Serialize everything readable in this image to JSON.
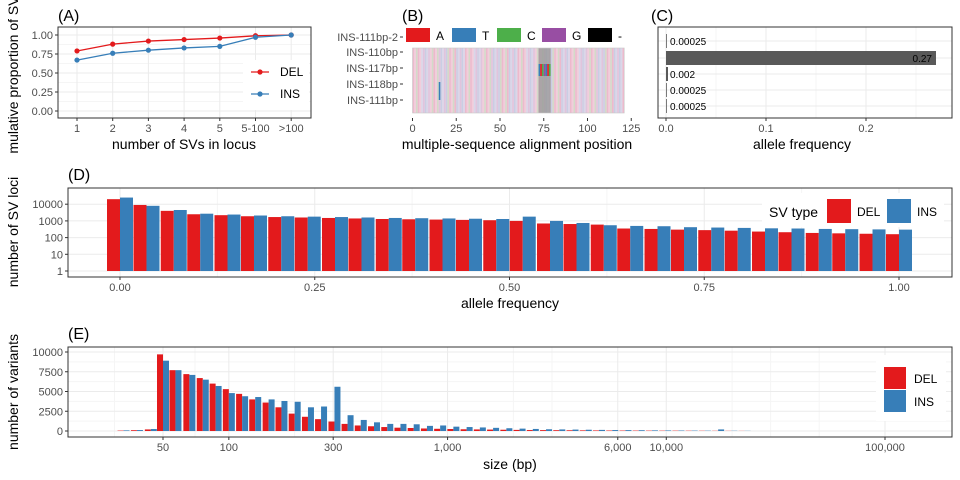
{
  "colors": {
    "DEL": "#e31a1c",
    "INS": "#377eb8",
    "A": "#e31a1c",
    "T": "#377eb8",
    "C": "#4daf4a",
    "G": "#984ea3",
    "gap": "#000000",
    "bar_c": "#595959"
  },
  "chart_data": [
    {
      "panel": "(A)",
      "type": "line",
      "xlabel": "number of SVs in locus",
      "ylabel": "mulative proportion of SV",
      "categories": [
        "1",
        "2",
        "3",
        "4",
        "5",
        "5-100",
        ">100"
      ],
      "ylim": [
        0,
        1
      ],
      "yticks": [
        "0.00",
        "0.25",
        "0.50",
        "0.75",
        "1.00"
      ],
      "series": [
        {
          "name": "DEL",
          "values": [
            0.79,
            0.88,
            0.92,
            0.94,
            0.96,
            0.99,
            1.0
          ]
        },
        {
          "name": "INS",
          "values": [
            0.67,
            0.76,
            0.8,
            0.83,
            0.85,
            0.97,
            1.0
          ]
        }
      ],
      "legend": "bottom-right",
      "grid": true
    },
    {
      "panel": "(B)",
      "type": "heatmap",
      "xlabel": "multiple-sequence alignment position",
      "rows": [
        "INS-111bp-2",
        "INS-110bp",
        "INS-117bp",
        "INS-118bp",
        "INS-111bp"
      ],
      "xlim": [
        0,
        125
      ],
      "xticks": [
        0,
        25,
        50,
        75,
        100,
        125
      ],
      "legend_labels": [
        "A",
        "T",
        "C",
        "G",
        "-"
      ],
      "legend": "top"
    },
    {
      "panel": "(C)",
      "type": "bar",
      "orientation": "horizontal",
      "xlabel": "allele frequency",
      "categories": [
        "INS-111bp-2",
        "INS-110bp",
        "INS-117bp",
        "INS-118bp",
        "INS-111bp"
      ],
      "values": [
        0.00025,
        0.27,
        0.002,
        0.00025,
        0.00025
      ],
      "labels": [
        "0.00025",
        "0.27",
        "0.002",
        "0.00025",
        "0.00025"
      ],
      "xlim": [
        0,
        0.28
      ],
      "xticks": [
        "0.0",
        "0.1",
        "0.2"
      ]
    },
    {
      "panel": "(D)",
      "type": "bar",
      "xlabel": "allele frequency",
      "ylabel": "number of SV loci",
      "yscale": "log",
      "ylim": [
        1,
        30000
      ],
      "yticks": [
        "1",
        "10",
        "100",
        "1000",
        "10000"
      ],
      "xlim": [
        -0.03,
        1.03
      ],
      "xticks": [
        "0.00",
        "0.25",
        "0.50",
        "0.75",
        "1.00"
      ],
      "x": [
        0.0,
        0.034,
        0.069,
        0.103,
        0.138,
        0.172,
        0.207,
        0.241,
        0.276,
        0.31,
        0.345,
        0.379,
        0.414,
        0.448,
        0.483,
        0.517,
        0.552,
        0.586,
        0.621,
        0.655,
        0.69,
        0.724,
        0.759,
        0.793,
        0.828,
        0.862,
        0.897,
        0.931,
        0.966,
        1.0
      ],
      "series": [
        {
          "name": "DEL",
          "values": [
            20000,
            9000,
            4000,
            2500,
            2200,
            1900,
            1700,
            1600,
            1500,
            1400,
            1300,
            1250,
            1200,
            1150,
            1100,
            1000,
            700,
            650,
            600,
            350,
            330,
            300,
            280,
            260,
            230,
            210,
            190,
            180,
            170,
            160
          ]
        },
        {
          "name": "INS",
          "values": [
            25000,
            8000,
            4500,
            2700,
            2400,
            2100,
            1900,
            1800,
            1700,
            1600,
            1500,
            1450,
            1400,
            1350,
            1300,
            1800,
            1000,
            750,
            550,
            500,
            480,
            420,
            400,
            380,
            360,
            350,
            330,
            320,
            310,
            300
          ]
        }
      ],
      "legend_title": "SV type",
      "legend": "top-right",
      "grid": true
    },
    {
      "panel": "(E)",
      "type": "bar",
      "xlabel": "size (bp)",
      "ylabel": "number of variants",
      "xscale": "log",
      "xlim": [
        20,
        200000
      ],
      "xticks": [
        "50",
        "100",
        "300",
        "1,000",
        "6,000",
        "10,000",
        "100,000"
      ],
      "ylim": [
        0,
        10000
      ],
      "yticks": [
        "0",
        "2500",
        "5000",
        "7500",
        "10000"
      ],
      "x": [
        33,
        38,
        44,
        50,
        57,
        66,
        76,
        87,
        100,
        115,
        132,
        152,
        174,
        200,
        230,
        264,
        304,
        349,
        401,
        461,
        530,
        609,
        700,
        805,
        925,
        1063,
        1222,
        1405,
        1615,
        1857,
        2134,
        2453,
        2820,
        3242,
        3727,
        4284,
        4925,
        5661,
        6508,
        7481,
        8600,
        9886,
        11364,
        13063,
        15016,
        17261,
        19842,
        22808
      ],
      "series": [
        {
          "name": "DEL",
          "values": [
            50,
            100,
            200,
            9700,
            7700,
            7200,
            6700,
            6000,
            5300,
            4700,
            4000,
            3600,
            3000,
            2200,
            1800,
            1500,
            1200,
            900,
            700,
            600,
            500,
            420,
            380,
            320,
            280,
            250,
            220,
            200,
            180,
            160,
            140,
            120,
            110,
            100,
            90,
            80,
            70,
            60,
            55,
            50,
            45,
            40,
            40,
            35,
            30,
            25,
            20,
            15
          ]
        },
        {
          "name": "INS",
          "values": [
            80,
            120,
            250,
            8900,
            7700,
            7100,
            6500,
            5700,
            4800,
            4400,
            4300,
            4000,
            3800,
            3700,
            3000,
            3100,
            5600,
            2000,
            1400,
            1100,
            900,
            900,
            850,
            650,
            700,
            550,
            500,
            450,
            400,
            350,
            300,
            260,
            220,
            200,
            180,
            160,
            140,
            120,
            110,
            100,
            80,
            70,
            60,
            50,
            40,
            200,
            30,
            20
          ]
        }
      ],
      "legend": "right",
      "grid": true
    }
  ]
}
